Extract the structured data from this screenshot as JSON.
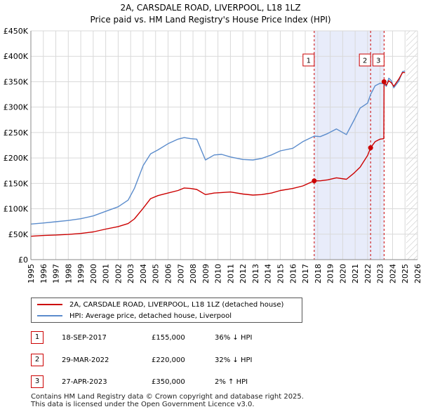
{
  "title": {
    "line1": "2A, CARSDALE ROAD, LIVERPOOL, L18 1LZ",
    "line2": "Price paid vs. HM Land Registry's House Price Index (HPI)"
  },
  "chart_data": {
    "type": "line",
    "xlim": [
      1995,
      2026
    ],
    "ylim": [
      0,
      450000
    ],
    "yticks": [
      0,
      50000,
      100000,
      150000,
      200000,
      250000,
      300000,
      350000,
      400000,
      450000
    ],
    "ytick_labels": [
      "£0",
      "£50K",
      "£100K",
      "£150K",
      "£200K",
      "£250K",
      "£300K",
      "£350K",
      "£400K",
      "£450K"
    ],
    "xticks": [
      1995,
      1996,
      1997,
      1998,
      1999,
      2000,
      2001,
      2002,
      2003,
      2004,
      2005,
      2006,
      2007,
      2008,
      2009,
      2010,
      2011,
      2012,
      2013,
      2014,
      2015,
      2016,
      2017,
      2018,
      2019,
      2020,
      2021,
      2022,
      2023,
      2024,
      2025,
      2026
    ],
    "grid": true,
    "shaded_period": [
      2017.72,
      2023.32
    ],
    "future_hatch_from": 2025.1,
    "series": [
      {
        "name": "2A, CARSDALE ROAD, LIVERPOOL, L18 1LZ (detached house)",
        "color": "#cc0000",
        "x": [
          1995,
          1996,
          1997,
          1998,
          1999,
          2000,
          2001,
          2002,
          2002.8,
          2003.3,
          2004,
          2004.6,
          2005.2,
          2006,
          2006.8,
          2007.3,
          2007.8,
          2008.3,
          2009,
          2009.7,
          2010.3,
          2011,
          2012,
          2012.8,
          2013.5,
          2014.3,
          2015,
          2016,
          2016.8,
          2017.72,
          2018.2,
          2018.8,
          2019.5,
          2020.3,
          2020.9,
          2021.4,
          2022.0,
          2022.24,
          2022.6,
          2023.0,
          2023.3,
          2023.32,
          2023.5,
          2023.7,
          2023.9,
          2024.1,
          2024.5,
          2024.8,
          2025.0
        ],
        "values": [
          46000,
          47500,
          48500,
          49500,
          51500,
          54500,
          60000,
          65000,
          71000,
          80000,
          101000,
          120000,
          126000,
          131000,
          136000,
          141000,
          140000,
          138000,
          128000,
          131000,
          132000,
          133000,
          129000,
          127000,
          128000,
          131000,
          136000,
          140000,
          145000,
          155000,
          155000,
          157000,
          161000,
          158000,
          170000,
          182000,
          205000,
          220000,
          232000,
          237000,
          238000,
          350000,
          343000,
          352000,
          348000,
          341000,
          355000,
          368000,
          368000
        ]
      },
      {
        "name": "HPI: Average price, detached house, Liverpool",
        "color": "#5b8ccc",
        "x": [
          1995,
          1996,
          1997,
          1998,
          1999,
          2000,
          2001,
          2002,
          2002.8,
          2003.3,
          2004,
          2004.6,
          2005.2,
          2006,
          2006.8,
          2007.3,
          2007.8,
          2008.3,
          2009,
          2009.7,
          2010.3,
          2011,
          2012,
          2012.8,
          2013.5,
          2014.3,
          2015,
          2016,
          2016.8,
          2017.72,
          2018.2,
          2018.8,
          2019.5,
          2020.3,
          2020.9,
          2021.4,
          2022.0,
          2022.24,
          2022.6,
          2023.0,
          2023.3,
          2023.5,
          2023.7,
          2023.9,
          2024.1,
          2024.5,
          2024.8,
          2025.0
        ],
        "values": [
          70000,
          72000,
          74500,
          77000,
          80500,
          86000,
          95000,
          104000,
          117000,
          140000,
          185000,
          208000,
          216000,
          228000,
          237000,
          240000,
          238000,
          237000,
          196000,
          206000,
          207000,
          202000,
          197000,
          196000,
          199000,
          206000,
          214000,
          219000,
          232000,
          243000,
          242000,
          248000,
          257000,
          246000,
          274000,
          298000,
          308000,
          325000,
          342000,
          347000,
          346000,
          341000,
          357000,
          352000,
          338000,
          351000,
          370000,
          371000
        ]
      }
    ],
    "sales": [
      {
        "id": "1",
        "x": 2017.72,
        "value": 155000
      },
      {
        "id": "2",
        "x": 2022.24,
        "value": 220000
      },
      {
        "id": "3",
        "x": 2023.32,
        "value": 350000
      }
    ]
  },
  "legend": {
    "property_label": "2A, CARSDALE ROAD, LIVERPOOL, L18 1LZ (detached house)",
    "hpi_label": "HPI: Average price, detached house, Liverpool"
  },
  "sales_table": [
    {
      "id": "1",
      "date": "18-SEP-2017",
      "price": "£155,000",
      "hpi": "36% ↓ HPI"
    },
    {
      "id": "2",
      "date": "29-MAR-2022",
      "price": "£220,000",
      "hpi": "32% ↓ HPI"
    },
    {
      "id": "3",
      "date": "27-APR-2023",
      "price": "£350,000",
      "hpi": "2% ↑ HPI"
    }
  ],
  "footer": {
    "line1": "Contains HM Land Registry data © Crown copyright and database right 2025.",
    "line2": "This data is licensed under the Open Government Licence v3.0."
  },
  "colors": {
    "property": "#cc0000",
    "hpi": "#5b8ccc",
    "shade": "#e8ecfa"
  }
}
